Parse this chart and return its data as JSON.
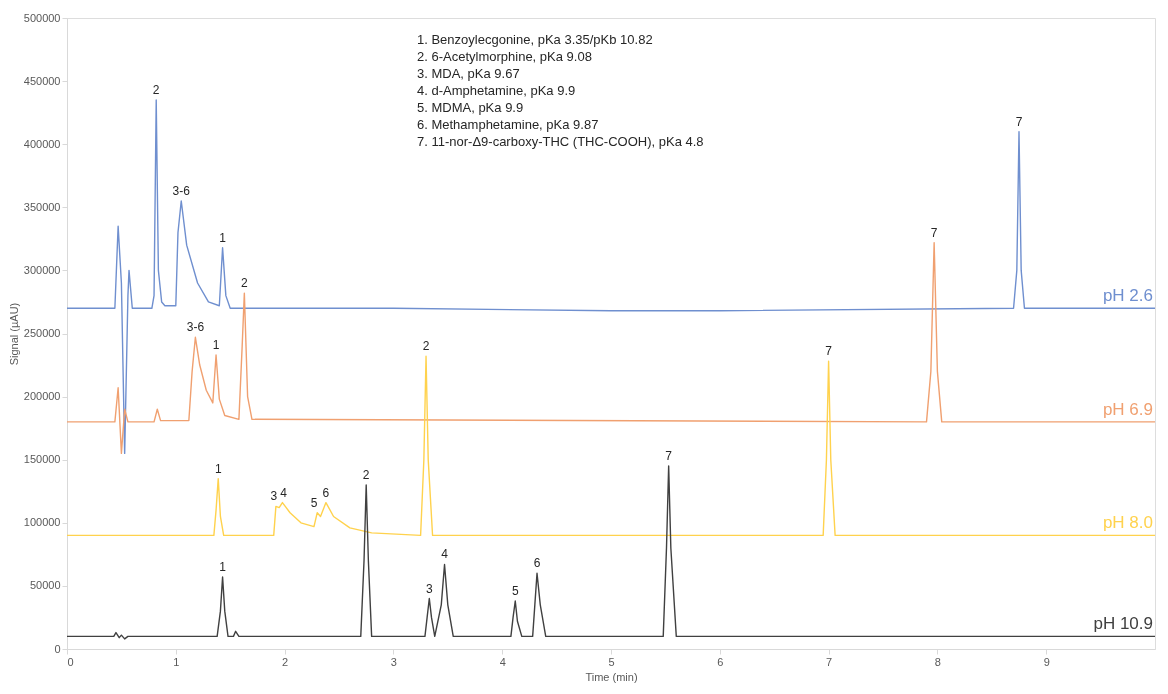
{
  "chart_data": {
    "type": "line",
    "xlabel": "Time (min)",
    "ylabel": "Signal (µAU)",
    "xlim": [
      0,
      10
    ],
    "xticks": [
      0,
      1,
      2,
      3,
      4,
      5,
      6,
      7,
      8,
      9
    ],
    "ylim": [
      0,
      500000
    ],
    "yticks": [
      0,
      50000,
      100000,
      150000,
      200000,
      250000,
      300000,
      350000,
      400000,
      450000,
      500000
    ],
    "grid": false,
    "series": [
      {
        "name": "pH 2.6",
        "color": "#6f8fcf",
        "x": [
          0,
          0.44,
          0.47,
          0.5,
          0.53,
          0.56,
          0.57,
          0.6,
          0.78,
          0.8,
          0.82,
          0.84,
          0.87,
          0.9,
          1.0,
          1.02,
          1.05,
          1.1,
          1.2,
          1.3,
          1.4,
          1.43,
          1.46,
          1.5,
          3,
          5,
          6,
          8.7,
          8.73,
          8.75,
          8.77,
          8.8,
          10
        ],
        "values": [
          270000,
          270000,
          335000,
          290000,
          155000,
          280000,
          300000,
          270000,
          270000,
          280000,
          435000,
          300000,
          275000,
          272000,
          272000,
          330000,
          355000,
          320000,
          290000,
          275000,
          272000,
          318000,
          280000,
          270000,
          270000,
          268000,
          268000,
          270000,
          300000,
          410000,
          300000,
          270000,
          270000
        ]
      },
      {
        "name": "pH 6.9",
        "color": "#f0a070",
        "x": [
          0,
          0.44,
          0.47,
          0.5,
          0.53,
          0.56,
          0.8,
          0.83,
          0.86,
          1.12,
          1.15,
          1.18,
          1.22,
          1.28,
          1.34,
          1.37,
          1.4,
          1.45,
          1.58,
          1.61,
          1.63,
          1.66,
          1.7,
          7.9,
          7.94,
          7.97,
          8.0,
          8.04,
          10
        ],
        "values": [
          180000,
          180000,
          207000,
          155000,
          190000,
          180000,
          180000,
          190000,
          181000,
          181000,
          220000,
          247000,
          225000,
          205000,
          195000,
          233000,
          198000,
          185000,
          182000,
          240000,
          282000,
          200000,
          182000,
          180000,
          220000,
          322000,
          220000,
          180000,
          180000
        ]
      },
      {
        "name": "pH 8.0",
        "color": "#ffd24d",
        "x": [
          0,
          1.35,
          1.37,
          1.39,
          1.41,
          1.44,
          1.9,
          1.92,
          1.95,
          1.98,
          2.05,
          2.15,
          2.27,
          2.3,
          2.33,
          2.38,
          2.45,
          2.6,
          2.8,
          3.25,
          3.28,
          3.3,
          3.32,
          3.36,
          6.95,
          6.98,
          7.0,
          7.02,
          7.06,
          10
        ],
        "values": [
          90000,
          90000,
          110000,
          135000,
          105000,
          90000,
          90000,
          113000,
          112000,
          116000,
          108000,
          100000,
          97000,
          108000,
          105000,
          116000,
          105000,
          96000,
          92000,
          90000,
          150000,
          232000,
          150000,
          90000,
          90000,
          150000,
          228000,
          150000,
          90000,
          90000
        ]
      },
      {
        "name": "pH 10.9",
        "color": "#404040",
        "x": [
          0,
          0.43,
          0.45,
          0.48,
          0.5,
          0.53,
          0.56,
          1.38,
          1.41,
          1.43,
          1.45,
          1.48,
          1.53,
          1.55,
          1.58,
          2.7,
          2.73,
          2.75,
          2.77,
          2.8,
          3.29,
          3.31,
          3.33,
          3.35,
          3.38,
          3.44,
          3.47,
          3.5,
          3.55,
          4.08,
          4.1,
          4.12,
          4.14,
          4.18,
          4.28,
          4.3,
          4.32,
          4.35,
          4.4,
          5.48,
          5.51,
          5.53,
          5.55,
          5.6,
          10
        ],
        "values": [
          10000,
          10000,
          13000,
          9000,
          11000,
          8000,
          10000,
          10000,
          30000,
          57000,
          30000,
          10000,
          10000,
          14000,
          10000,
          10000,
          70000,
          130000,
          70000,
          10000,
          10000,
          25000,
          40000,
          25000,
          10000,
          35000,
          67000,
          35000,
          10000,
          10000,
          25000,
          38000,
          22000,
          10000,
          10000,
          35000,
          60000,
          35000,
          10000,
          10000,
          80000,
          145000,
          80000,
          10000,
          10000
        ]
      }
    ],
    "annotations": [
      "1.      Benzoylecgonine, pKa 3.35/pKb 10.82",
      "2.      6-Acetylmorphine, pKa 9.08",
      "3.      MDA, pKa 9.67",
      "4.      d-Amphetamine, pKa 9.9",
      "5.      MDMA, pKa 9.9",
      "6.      Methamphetamine, pKa 9.87",
      "7.      11-nor-Δ9-carboxy-THC (THC-COOH), pKa 4.8",
      {
        "text": "2",
        "x": 0.82,
        "y": 435000
      },
      {
        "text": "3-6",
        "x": 1.05,
        "y": 355000
      },
      {
        "text": "1",
        "x": 1.43,
        "y": 318000
      },
      {
        "text": "7",
        "x": 8.75,
        "y": 410000
      },
      {
        "text": "3-6",
        "x": 1.18,
        "y": 247000
      },
      {
        "text": "1",
        "x": 1.37,
        "y": 233000
      },
      {
        "text": "2",
        "x": 1.63,
        "y": 282000
      },
      {
        "text": "7",
        "x": 7.97,
        "y": 322000
      },
      {
        "text": "1",
        "x": 1.39,
        "y": 135000
      },
      {
        "text": "3",
        "x": 1.9,
        "y": 113000
      },
      {
        "text": "4",
        "x": 1.99,
        "y": 116000
      },
      {
        "text": "5",
        "x": 2.27,
        "y": 108000
      },
      {
        "text": "6",
        "x": 2.38,
        "y": 116000
      },
      {
        "text": "2",
        "x": 3.3,
        "y": 232000
      },
      {
        "text": "7",
        "x": 7.0,
        "y": 228000
      },
      {
        "text": "1",
        "x": 1.43,
        "y": 57000
      },
      {
        "text": "2",
        "x": 2.75,
        "y": 130000
      },
      {
        "text": "3",
        "x": 3.33,
        "y": 40000
      },
      {
        "text": "4",
        "x": 3.47,
        "y": 67000
      },
      {
        "text": "5",
        "x": 4.12,
        "y": 38000
      },
      {
        "text": "6",
        "x": 4.32,
        "y": 60000
      },
      {
        "text": "7",
        "x": 5.53,
        "y": 145000
      }
    ]
  }
}
